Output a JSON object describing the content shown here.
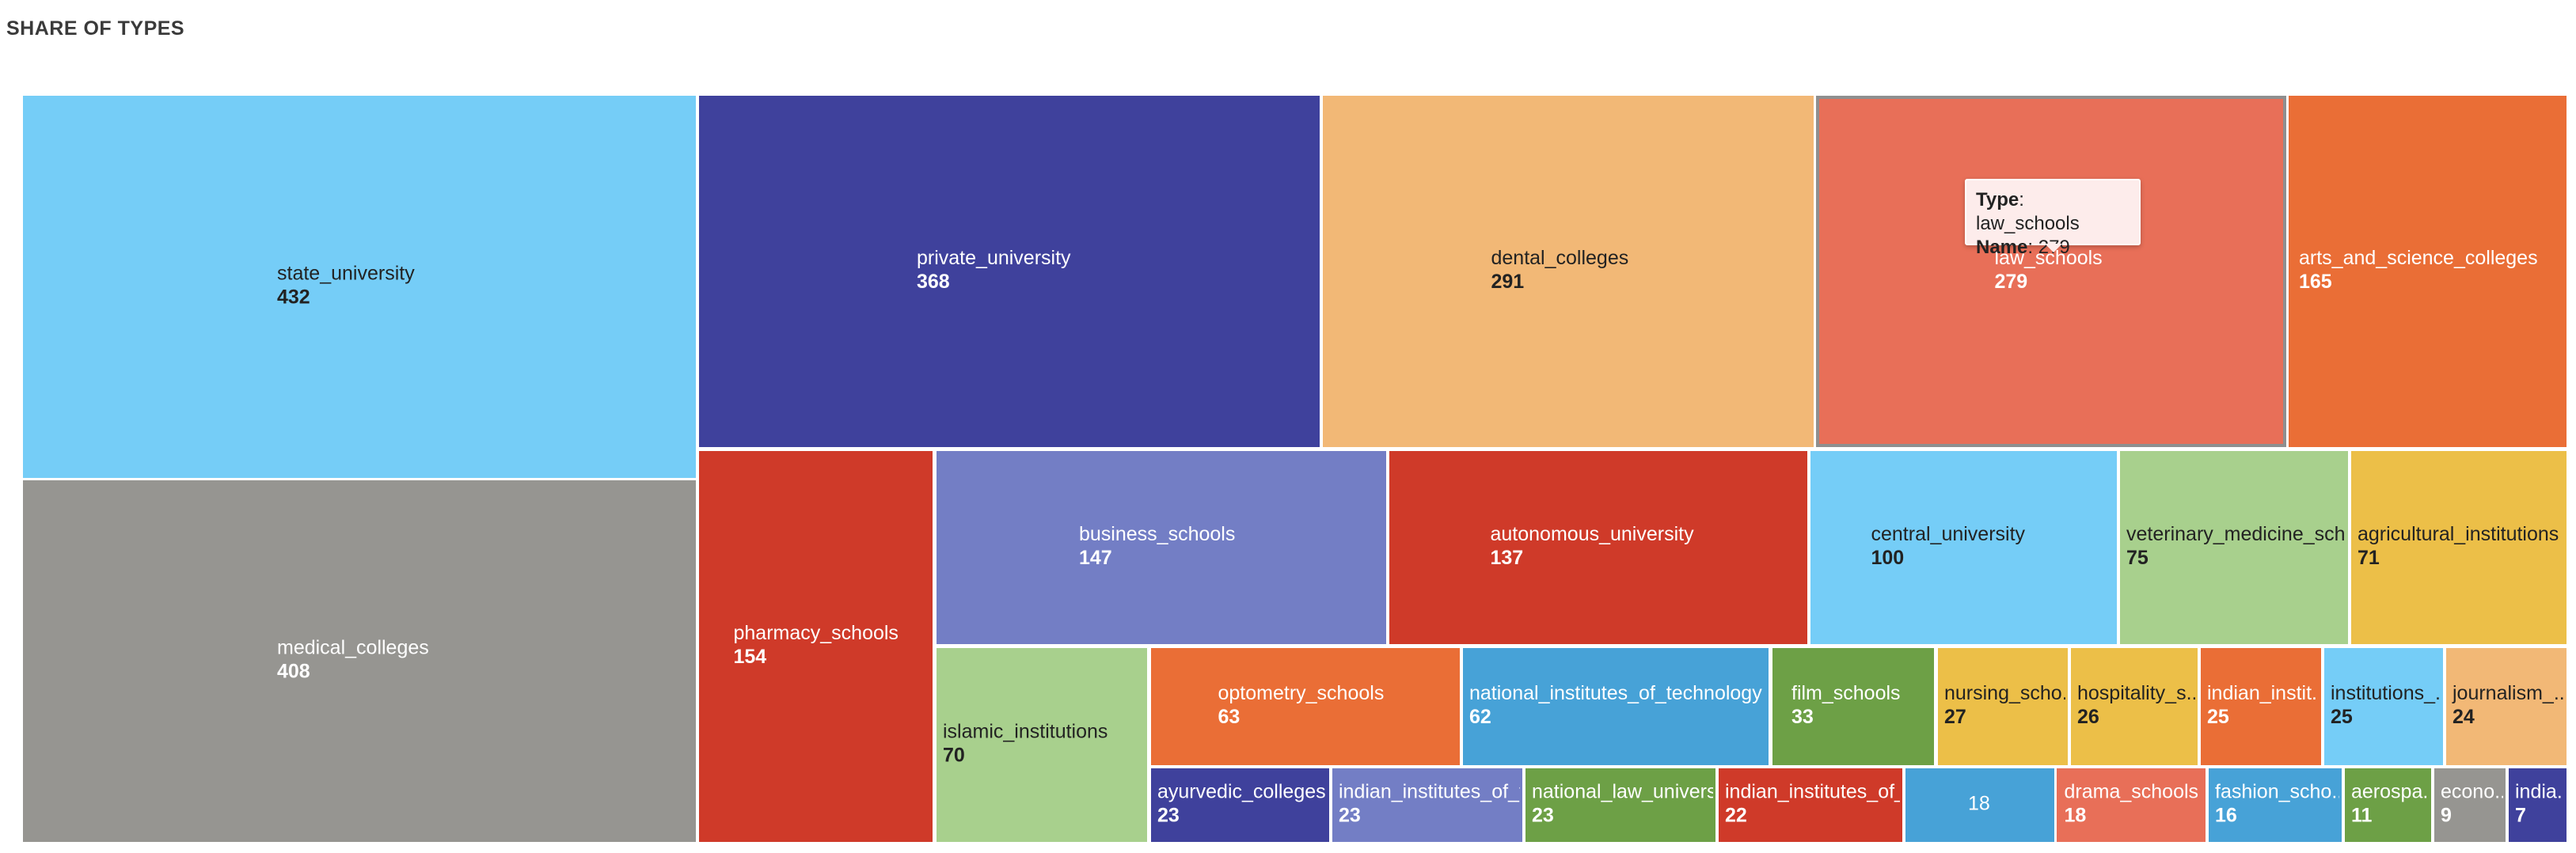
{
  "page": {
    "title": "SHARE OF TYPES"
  },
  "tooltip": {
    "type_key": "Type",
    "type_value": "law_schools",
    "name_key": "Name",
    "name_value": "279"
  },
  "chart_data": {
    "type": "treemap",
    "title": "SHARE OF TYPES",
    "items": [
      {
        "label": "state_university",
        "value": 432,
        "color": "#75cdf7",
        "text_color": "#222222"
      },
      {
        "label": "medical_colleges",
        "value": 408,
        "color": "#969591",
        "text_color": "#ffffff"
      },
      {
        "label": "private_university",
        "value": 368,
        "color": "#3f419c",
        "text_color": "#ffffff"
      },
      {
        "label": "dental_colleges",
        "value": 291,
        "color": "#f2b876",
        "text_color": "#222222"
      },
      {
        "label": "law_schools",
        "value": 279,
        "color": "#e86f58",
        "text_color": "#ffffff",
        "highlight": true
      },
      {
        "label": "arts_and_science_colleges",
        "value": 165,
        "color": "#ea6e36",
        "text_color": "#ffffff"
      },
      {
        "label": "pharmacy_schools",
        "value": 154,
        "color": "#cf3a29",
        "text_color": "#ffffff"
      },
      {
        "label": "business_schools",
        "value": 147,
        "color": "#737ec5",
        "text_color": "#ffffff"
      },
      {
        "label": "autonomous_university",
        "value": 137,
        "color": "#cf3a29",
        "text_color": "#ffffff"
      },
      {
        "label": "central_university",
        "value": 100,
        "color": "#75cdf7",
        "text_color": "#222222"
      },
      {
        "label": "veterinary_medicine_scho...",
        "value": 75,
        "color": "#a8d08d",
        "text_color": "#222222"
      },
      {
        "label": "agricultural_institutions",
        "value": 71,
        "color": "#ecbf48",
        "text_color": "#222222"
      },
      {
        "label": "islamic_institutions",
        "value": 70,
        "color": "#a8d08d",
        "text_color": "#222222"
      },
      {
        "label": "optometry_schools",
        "value": 63,
        "color": "#ea6e36",
        "text_color": "#ffffff"
      },
      {
        "label": "national_institutes_of_technology",
        "value": 62,
        "color": "#47a2d7",
        "text_color": "#ffffff"
      },
      {
        "label": "film_schools",
        "value": 33,
        "color": "#6da046",
        "text_color": "#ffffff"
      },
      {
        "label": "nursing_scho...",
        "value": 27,
        "color": "#ecbf48",
        "text_color": "#222222"
      },
      {
        "label": "hospitality_s...",
        "value": 26,
        "color": "#ecbf48",
        "text_color": "#222222"
      },
      {
        "label": "indian_instit...",
        "value": 25,
        "color": "#ea6e36",
        "text_color": "#ffffff"
      },
      {
        "label": "institutions_...",
        "value": 25,
        "color": "#75cdf7",
        "text_color": "#222222"
      },
      {
        "label": "journalism_...",
        "value": 24,
        "color": "#f2b876",
        "text_color": "#222222"
      },
      {
        "label": "ayurvedic_colleges",
        "value": 23,
        "color": "#3f419c",
        "text_color": "#ffffff"
      },
      {
        "label": "indian_institutes_of_t...",
        "value": 23,
        "color": "#737ec5",
        "text_color": "#ffffff"
      },
      {
        "label": "national_law_universi...",
        "value": 23,
        "color": "#6da046",
        "text_color": "#ffffff"
      },
      {
        "label": "indian_institutes_of_...",
        "value": 22,
        "color": "#cf3a29",
        "text_color": "#ffffff"
      },
      {
        "label": "",
        "value": 18,
        "color": "#47a2d7",
        "text_color": "#ffffff"
      },
      {
        "label": "drama_schools",
        "value": 18,
        "color": "#e86f58",
        "text_color": "#ffffff"
      },
      {
        "label": "fashion_scho...",
        "value": 16,
        "color": "#47a2d7",
        "text_color": "#ffffff"
      },
      {
        "label": "aerospa...",
        "value": 11,
        "color": "#6da046",
        "text_color": "#ffffff"
      },
      {
        "label": "econo...",
        "value": 9,
        "color": "#969591",
        "text_color": "#ffffff"
      },
      {
        "label": "india...",
        "value": 7,
        "color": "#3f419c",
        "text_color": "#ffffff"
      }
    ]
  }
}
